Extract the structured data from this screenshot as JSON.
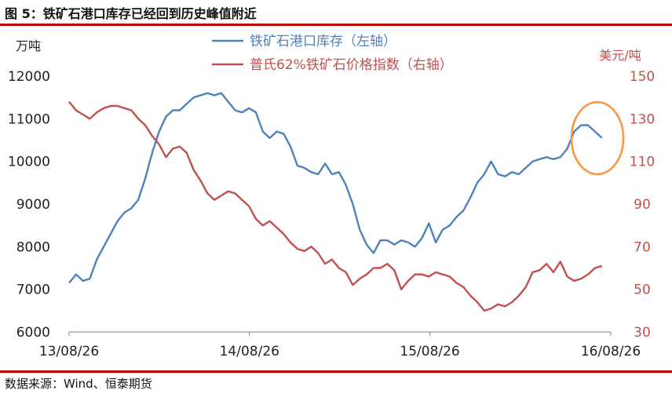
{
  "figure_title": "图 5：铁矿石港口库存已经回到历史峰值附近",
  "source": "数据来源：Wind、恒泰期货",
  "colors": {
    "blue": "#4f81bd",
    "red": "#c0504d",
    "highlight": "#f79646",
    "rule": "#c00000"
  },
  "chart_data": {
    "type": "line",
    "left_axis_unit": "万吨",
    "right_axis_unit": "美元/吨",
    "ylim_left": [
      6000,
      12000
    ],
    "ylim_right": [
      30,
      150
    ],
    "yticks_left": [
      "6000",
      "7000",
      "8000",
      "9000",
      "10000",
      "11000",
      "12000"
    ],
    "yticks_right": [
      "30",
      "50",
      "70",
      "90",
      "110",
      "130",
      "150"
    ],
    "xticks": [
      "13/08/26",
      "14/08/26",
      "15/08/26",
      "16/08/26"
    ],
    "x_range": [
      "13/08/26",
      "16/08/26"
    ],
    "annotation": "highlight-circle around latest inventory peak",
    "series": [
      {
        "name": "铁矿石港口库存（左轴）",
        "axis": "left",
        "color": "#4f81bd",
        "points": [
          [
            "13/08/26",
            7150
          ],
          [
            "13/09/09",
            7350
          ],
          [
            "13/09/23",
            7200
          ],
          [
            "13/10/07",
            7250
          ],
          [
            "13/10/21",
            7700
          ],
          [
            "13/11/04",
            8000
          ],
          [
            "13/11/18",
            8300
          ],
          [
            "13/12/02",
            8600
          ],
          [
            "13/12/16",
            8800
          ],
          [
            "13/12/30",
            8900
          ],
          [
            "14/01/13",
            9100
          ],
          [
            "14/01/27",
            9600
          ],
          [
            "14/02/10",
            10200
          ],
          [
            "14/02/24",
            10700
          ],
          [
            "14/03/10",
            11050
          ],
          [
            "14/03/24",
            11200
          ],
          [
            "14/04/07",
            11200
          ],
          [
            "14/04/21",
            11350
          ],
          [
            "14/05/05",
            11500
          ],
          [
            "14/05/19",
            11550
          ],
          [
            "14/06/02",
            11600
          ],
          [
            "14/06/16",
            11550
          ],
          [
            "14/06/30",
            11600
          ],
          [
            "14/07/14",
            11400
          ],
          [
            "14/07/28",
            11200
          ],
          [
            "14/08/11",
            11150
          ],
          [
            "14/08/25",
            11250
          ],
          [
            "14/09/08",
            11150
          ],
          [
            "14/09/22",
            10700
          ],
          [
            "14/10/06",
            10550
          ],
          [
            "14/10/20",
            10700
          ],
          [
            "14/11/03",
            10650
          ],
          [
            "14/11/17",
            10350
          ],
          [
            "14/12/01",
            9900
          ],
          [
            "14/12/15",
            9850
          ],
          [
            "14/12/29",
            9750
          ],
          [
            "15/01/12",
            9700
          ],
          [
            "15/01/26",
            9950
          ],
          [
            "15/02/09",
            9700
          ],
          [
            "15/02/23",
            9750
          ],
          [
            "15/03/09",
            9450
          ],
          [
            "15/03/23",
            9000
          ],
          [
            "15/04/06",
            8400
          ],
          [
            "15/04/20",
            8050
          ],
          [
            "15/05/04",
            7850
          ],
          [
            "15/05/18",
            8150
          ],
          [
            "15/06/01",
            8150
          ],
          [
            "15/06/15",
            8050
          ],
          [
            "15/06/29",
            8150
          ],
          [
            "15/07/13",
            8100
          ],
          [
            "15/07/27",
            8000
          ],
          [
            "15/08/10",
            8200
          ],
          [
            "15/08/24",
            8550
          ],
          [
            "15/09/07",
            8100
          ],
          [
            "15/09/21",
            8400
          ],
          [
            "15/10/05",
            8500
          ],
          [
            "15/10/19",
            8700
          ],
          [
            "15/11/02",
            8850
          ],
          [
            "15/11/16",
            9150
          ],
          [
            "15/11/30",
            9500
          ],
          [
            "15/12/14",
            9700
          ],
          [
            "15/12/28",
            10000
          ],
          [
            "16/01/11",
            9700
          ],
          [
            "16/01/25",
            9650
          ],
          [
            "16/02/08",
            9750
          ],
          [
            "16/02/22",
            9700
          ],
          [
            "16/03/07",
            9850
          ],
          [
            "16/03/21",
            10000
          ],
          [
            "16/04/04",
            10050
          ],
          [
            "16/04/18",
            10100
          ],
          [
            "16/05/02",
            10050
          ],
          [
            "16/05/16",
            10100
          ],
          [
            "16/05/30",
            10300
          ],
          [
            "16/06/13",
            10700
          ],
          [
            "16/06/27",
            10850
          ],
          [
            "16/07/11",
            10850
          ],
          [
            "16/07/25",
            10700
          ],
          [
            "16/08/08",
            10550
          ]
        ]
      },
      {
        "name": "普氏62%铁矿石价格指数（右轴）",
        "axis": "right",
        "color": "#c0504d",
        "points": [
          [
            "13/08/26",
            138
          ],
          [
            "13/09/09",
            134
          ],
          [
            "13/09/23",
            132
          ],
          [
            "13/10/07",
            130
          ],
          [
            "13/10/21",
            133
          ],
          [
            "13/11/04",
            135
          ],
          [
            "13/11/18",
            136
          ],
          [
            "13/12/02",
            136
          ],
          [
            "13/12/16",
            135
          ],
          [
            "13/12/30",
            134
          ],
          [
            "14/01/13",
            130
          ],
          [
            "14/01/27",
            127
          ],
          [
            "14/02/10",
            122
          ],
          [
            "14/02/24",
            118
          ],
          [
            "14/03/10",
            112
          ],
          [
            "14/03/24",
            116
          ],
          [
            "14/04/07",
            117
          ],
          [
            "14/04/21",
            114
          ],
          [
            "14/05/05",
            106
          ],
          [
            "14/05/19",
            101
          ],
          [
            "14/06/02",
            95
          ],
          [
            "14/06/16",
            92
          ],
          [
            "14/06/30",
            94
          ],
          [
            "14/07/14",
            96
          ],
          [
            "14/07/28",
            95
          ],
          [
            "14/08/11",
            92
          ],
          [
            "14/08/25",
            89
          ],
          [
            "14/09/08",
            83
          ],
          [
            "14/09/22",
            80
          ],
          [
            "14/10/06",
            82
          ],
          [
            "14/10/20",
            79
          ],
          [
            "14/11/03",
            76
          ],
          [
            "14/11/17",
            72
          ],
          [
            "14/12/01",
            69
          ],
          [
            "14/12/15",
            68
          ],
          [
            "14/12/29",
            70
          ],
          [
            "15/01/12",
            67
          ],
          [
            "15/01/26",
            62
          ],
          [
            "15/02/09",
            64
          ],
          [
            "15/02/23",
            60
          ],
          [
            "15/03/09",
            58
          ],
          [
            "15/03/23",
            52
          ],
          [
            "15/04/06",
            55
          ],
          [
            "15/04/20",
            57
          ],
          [
            "15/05/04",
            60
          ],
          [
            "15/05/18",
            60
          ],
          [
            "15/06/01",
            62
          ],
          [
            "15/06/15",
            59
          ],
          [
            "15/06/29",
            50
          ],
          [
            "15/07/13",
            54
          ],
          [
            "15/07/27",
            57
          ],
          [
            "15/08/10",
            57
          ],
          [
            "15/08/24",
            56
          ],
          [
            "15/09/07",
            58
          ],
          [
            "15/09/21",
            57
          ],
          [
            "15/10/05",
            56
          ],
          [
            "15/10/19",
            53
          ],
          [
            "15/11/02",
            51
          ],
          [
            "15/11/16",
            47
          ],
          [
            "15/11/30",
            44
          ],
          [
            "15/12/14",
            40
          ],
          [
            "15/12/28",
            41
          ],
          [
            "16/01/11",
            43
          ],
          [
            "16/01/25",
            42
          ],
          [
            "16/02/08",
            44
          ],
          [
            "16/02/22",
            47
          ],
          [
            "16/03/07",
            51
          ],
          [
            "16/03/21",
            58
          ],
          [
            "16/04/04",
            59
          ],
          [
            "16/04/18",
            62
          ],
          [
            "16/05/02",
            58
          ],
          [
            "16/05/16",
            63
          ],
          [
            "16/05/30",
            56
          ],
          [
            "16/06/13",
            54
          ],
          [
            "16/06/27",
            55
          ],
          [
            "16/07/11",
            57
          ],
          [
            "16/07/25",
            60
          ],
          [
            "16/08/08",
            61
          ]
        ]
      }
    ]
  }
}
